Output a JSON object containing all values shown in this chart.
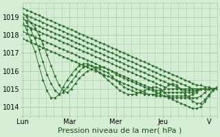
{
  "background_color": "#d4edd4",
  "plot_bg_color": "#d4edd4",
  "grid_color": "#a8cca8",
  "line_color": "#2d6e2d",
  "marker_color": "#2d6e2d",
  "xlabel": "Pression niveau de la mer( hPa )",
  "xlabel_fontsize": 8,
  "ylabel_fontsize": 7,
  "tick_fontsize": 7,
  "ylim": [
    1013.5,
    1019.8
  ],
  "yticks": [
    1014,
    1015,
    1016,
    1017,
    1018,
    1019
  ],
  "xtick_labels": [
    "Lun",
    "Mar",
    "Mer",
    "Jeu",
    "V"
  ],
  "xtick_positions": [
    0,
    24,
    48,
    72,
    96
  ],
  "num_hours": 100,
  "series": [
    [
      1019.5,
      1019.4,
      1019.3,
      1019.2,
      1019.1,
      1019.0,
      1018.9,
      1018.8,
      1018.7,
      1018.6,
      1018.5,
      1018.4,
      1018.3,
      1018.2,
      1018.1,
      1018.0,
      1017.9,
      1017.8,
      1017.7,
      1017.6,
      1017.5,
      1017.4,
      1017.3,
      1017.2,
      1017.1,
      1017.0,
      1016.9,
      1016.8,
      1016.7,
      1016.6,
      1016.5,
      1016.4,
      1016.3,
      1016.2,
      1016.1,
      1016.0,
      1015.9,
      1015.8,
      1015.7,
      1015.6,
      1015.5,
      1015.4,
      1015.3,
      1015.2,
      1015.2,
      1015.1,
      1015.1,
      1015.0,
      1015.0
    ],
    [
      1019.2,
      1019.1,
      1019.0,
      1018.9,
      1018.8,
      1018.7,
      1018.6,
      1018.5,
      1018.4,
      1018.3,
      1018.2,
      1018.1,
      1018.0,
      1017.9,
      1017.8,
      1017.7,
      1017.6,
      1017.5,
      1017.4,
      1017.3,
      1017.2,
      1017.1,
      1017.0,
      1016.9,
      1016.8,
      1016.7,
      1016.6,
      1016.5,
      1016.4,
      1016.3,
      1016.2,
      1016.1,
      1016.0,
      1015.9,
      1015.8,
      1015.7,
      1015.6,
      1015.5,
      1015.4,
      1015.3,
      1015.2,
      1015.1,
      1015.0,
      1015.0,
      1015.0,
      1015.0,
      1015.0,
      1015.0,
      1015.0
    ],
    [
      1018.9,
      1018.8,
      1018.7,
      1018.6,
      1018.5,
      1018.4,
      1018.3,
      1018.2,
      1018.1,
      1018.0,
      1017.9,
      1017.8,
      1017.7,
      1017.6,
      1017.5,
      1017.4,
      1017.3,
      1017.2,
      1017.1,
      1017.0,
      1016.9,
      1016.8,
      1016.7,
      1016.6,
      1016.5,
      1016.4,
      1016.3,
      1016.2,
      1016.1,
      1016.0,
      1015.9,
      1015.8,
      1015.7,
      1015.6,
      1015.5,
      1015.4,
      1015.3,
      1015.2,
      1015.1,
      1015.0,
      1015.0,
      1015.0,
      1015.0,
      1015.0,
      1015.0,
      1015.0,
      1015.0,
      1015.0,
      1015.0
    ],
    [
      1018.6,
      1018.5,
      1018.4,
      1018.3,
      1018.2,
      1018.1,
      1018.0,
      1017.9,
      1017.8,
      1017.7,
      1017.6,
      1017.5,
      1017.4,
      1017.3,
      1017.2,
      1017.1,
      1017.0,
      1016.9,
      1016.8,
      1016.7,
      1016.6,
      1016.5,
      1016.4,
      1016.3,
      1016.2,
      1016.1,
      1016.0,
      1015.9,
      1015.8,
      1015.7,
      1015.6,
      1015.5,
      1015.4,
      1015.3,
      1015.2,
      1015.1,
      1015.0,
      1015.0,
      1015.0,
      1015.0,
      1014.9,
      1014.9,
      1014.9,
      1014.9,
      1015.0,
      1015.0,
      1015.0,
      1015.0,
      1015.0
    ],
    [
      1018.2,
      1018.1,
      1018.0,
      1017.9,
      1017.8,
      1017.7,
      1017.6,
      1017.5,
      1017.4,
      1017.3,
      1017.2,
      1017.1,
      1017.0,
      1016.9,
      1016.8,
      1016.7,
      1016.6,
      1016.5,
      1016.4,
      1016.3,
      1016.2,
      1016.1,
      1016.0,
      1015.9,
      1015.8,
      1015.7,
      1015.6,
      1015.5,
      1015.4,
      1015.3,
      1015.2,
      1015.1,
      1015.0,
      1014.9,
      1014.9,
      1014.8,
      1014.8,
      1014.8,
      1014.8,
      1014.8,
      1014.8,
      1014.8,
      1014.8,
      1014.9,
      1015.0,
      1015.0,
      1015.0,
      1015.0,
      1015.0
    ],
    [
      1017.8,
      1017.7,
      1017.6,
      1017.5,
      1017.4,
      1017.3,
      1017.2,
      1017.1,
      1017.0,
      1016.9,
      1016.8,
      1016.7,
      1016.6,
      1016.5,
      1016.4,
      1016.3,
      1016.2,
      1016.1,
      1016.0,
      1015.9,
      1015.8,
      1015.7,
      1015.6,
      1015.5,
      1015.4,
      1015.3,
      1015.2,
      1015.1,
      1015.0,
      1014.9,
      1014.8,
      1014.7,
      1014.7,
      1014.6,
      1014.6,
      1014.6,
      1014.6,
      1014.6,
      1014.6,
      1014.6,
      1014.6,
      1014.6,
      1014.7,
      1014.8,
      1015.0,
      1015.0,
      1015.0,
      1015.0,
      1015.0
    ],
    [
      1019.2,
      1019.0,
      1018.7,
      1018.4,
      1018.0,
      1017.5,
      1016.9,
      1016.3,
      1015.7,
      1015.2,
      1014.9,
      1014.8,
      1015.0,
      1015.3,
      1015.6,
      1015.8,
      1016.0,
      1016.1,
      1016.2,
      1016.2,
      1016.2,
      1016.1,
      1016.0,
      1015.8,
      1015.7,
      1015.6,
      1015.5,
      1015.4,
      1015.3,
      1015.2,
      1015.1,
      1015.0,
      1014.9,
      1014.8,
      1014.7,
      1014.6,
      1014.5,
      1014.5,
      1014.5,
      1014.5,
      1014.5,
      1014.5,
      1014.5,
      1014.5,
      1014.6,
      1014.8,
      1015.0,
      1015.0,
      1015.0
    ],
    [
      1019.0,
      1018.7,
      1018.3,
      1017.8,
      1017.2,
      1016.5,
      1015.8,
      1015.3,
      1014.9,
      1014.7,
      1014.8,
      1015.1,
      1015.4,
      1015.7,
      1016.0,
      1016.2,
      1016.3,
      1016.3,
      1016.2,
      1016.1,
      1016.0,
      1015.9,
      1015.7,
      1015.5,
      1015.3,
      1015.1,
      1015.0,
      1014.9,
      1014.8,
      1014.8,
      1014.7,
      1014.7,
      1014.7,
      1014.7,
      1014.8,
      1015.0,
      1015.2,
      1015.3,
      1015.2,
      1015.0,
      1014.7,
      1014.5,
      1014.3,
      1014.2,
      1014.2,
      1014.4,
      1014.7,
      1015.0,
      1015.1
    ],
    [
      1018.7,
      1018.3,
      1017.7,
      1017.1,
      1016.3,
      1015.5,
      1014.9,
      1014.5,
      1014.5,
      1014.7,
      1015.1,
      1015.5,
      1015.8,
      1016.1,
      1016.3,
      1016.4,
      1016.4,
      1016.3,
      1016.1,
      1015.9,
      1015.7,
      1015.5,
      1015.3,
      1015.1,
      1014.9,
      1014.8,
      1014.7,
      1014.7,
      1014.7,
      1014.8,
      1014.9,
      1015.0,
      1015.1,
      1015.1,
      1015.0,
      1014.8,
      1014.6,
      1014.4,
      1014.3,
      1014.2,
      1014.1,
      1014.0,
      1013.9,
      1013.9,
      1014.0,
      1014.3,
      1014.6,
      1014.9,
      1015.1
    ]
  ]
}
